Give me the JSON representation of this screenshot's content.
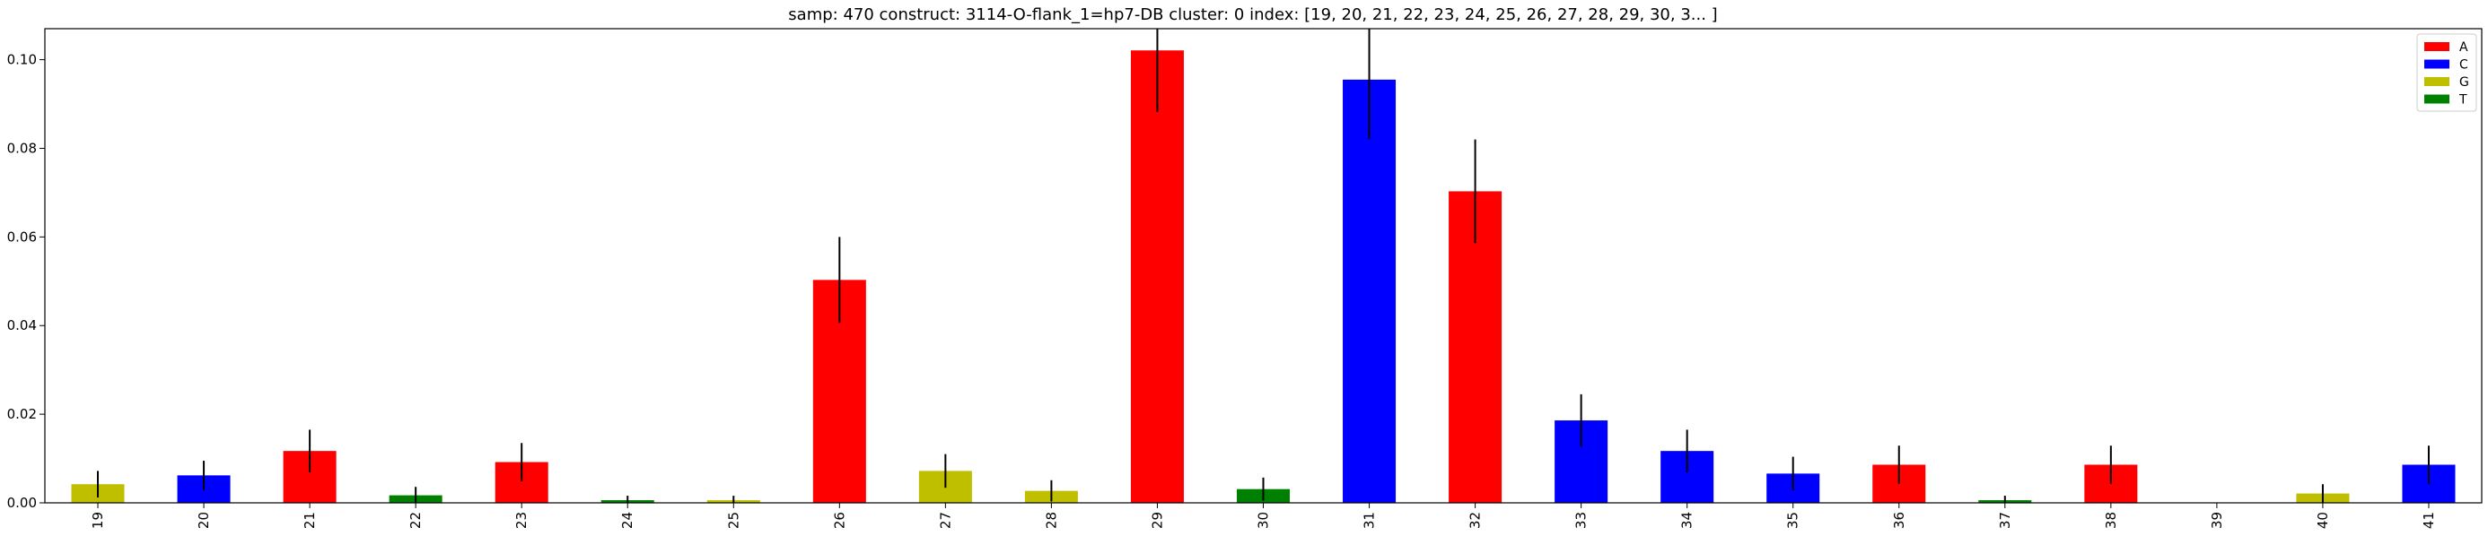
{
  "chart_data": {
    "type": "bar",
    "title": "samp: 470  construct: 3114-O-flank_1=hp7-DB  cluster: 0  index: [19, 20, 21, 22, 23, 24, 25, 26, 27, 28, 29, 30, 3... ]",
    "xlabel": "",
    "ylabel": "",
    "ylim": [
      0,
      0.107
    ],
    "yticks": [
      0.0,
      0.02,
      0.04,
      0.06,
      0.08,
      0.1
    ],
    "ytick_labels": [
      "0.00",
      "0.02",
      "0.04",
      "0.06",
      "0.08",
      "0.10"
    ],
    "grid": false,
    "legend_position": "top-right",
    "legend": [
      {
        "label": "A",
        "color": "#ff0000"
      },
      {
        "label": "C",
        "color": "#0000ff"
      },
      {
        "label": "G",
        "color": "#bfbf00"
      },
      {
        "label": "T",
        "color": "#008000"
      }
    ],
    "categories": [
      "19",
      "20",
      "21",
      "22",
      "23",
      "24",
      "25",
      "26",
      "27",
      "28",
      "29",
      "30",
      "31",
      "32",
      "33",
      "34",
      "35",
      "36",
      "37",
      "38",
      "39",
      "40",
      "41"
    ],
    "bars": [
      {
        "x": "19",
        "nuc": "G",
        "value": 0.0042,
        "err": 0.003
      },
      {
        "x": "20",
        "nuc": "C",
        "value": 0.0062,
        "err": 0.0033
      },
      {
        "x": "21",
        "nuc": "A",
        "value": 0.0117,
        "err": 0.0048
      },
      {
        "x": "22",
        "nuc": "T",
        "value": 0.0017,
        "err": 0.0019
      },
      {
        "x": "23",
        "nuc": "A",
        "value": 0.0092,
        "err": 0.0043
      },
      {
        "x": "24",
        "nuc": "T",
        "value": 0.0006,
        "err": 0.001
      },
      {
        "x": "25",
        "nuc": "G",
        "value": 0.0006,
        "err": 0.001
      },
      {
        "x": "26",
        "nuc": "A",
        "value": 0.0503,
        "err": 0.0097
      },
      {
        "x": "27",
        "nuc": "G",
        "value": 0.0072,
        "err": 0.0038
      },
      {
        "x": "28",
        "nuc": "G",
        "value": 0.0027,
        "err": 0.0024
      },
      {
        "x": "29",
        "nuc": "A",
        "value": 0.1021,
        "err": 0.0139
      },
      {
        "x": "30",
        "nuc": "T",
        "value": 0.0031,
        "err": 0.0026
      },
      {
        "x": "31",
        "nuc": "C",
        "value": 0.0955,
        "err": 0.0134
      },
      {
        "x": "32",
        "nuc": "A",
        "value": 0.0703,
        "err": 0.0117
      },
      {
        "x": "33",
        "nuc": "C",
        "value": 0.0186,
        "err": 0.0059
      },
      {
        "x": "34",
        "nuc": "C",
        "value": 0.0117,
        "err": 0.0048
      },
      {
        "x": "35",
        "nuc": "C",
        "value": 0.0066,
        "err": 0.0038
      },
      {
        "x": "36",
        "nuc": "A",
        "value": 0.0086,
        "err": 0.0043
      },
      {
        "x": "37",
        "nuc": "T",
        "value": 0.0006,
        "err": 0.001
      },
      {
        "x": "38",
        "nuc": "A",
        "value": 0.0086,
        "err": 0.0043
      },
      {
        "x": "39",
        "nuc": "G",
        "value": 0.0,
        "err": 0.0
      },
      {
        "x": "40",
        "nuc": "G",
        "value": 0.0021,
        "err": 0.0021
      },
      {
        "x": "41",
        "nuc": "C",
        "value": 0.0086,
        "err": 0.0043
      }
    ]
  }
}
